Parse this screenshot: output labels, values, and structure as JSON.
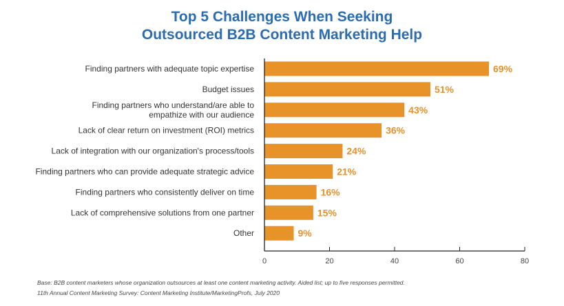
{
  "chart_data": {
    "type": "bar",
    "orientation": "horizontal",
    "title": [
      "Top 5 Challenges When Seeking",
      "Outsourced B2B Content Marketing Help"
    ],
    "categories": [
      [
        "Finding partners with adequate topic expertise"
      ],
      [
        "Budget issues"
      ],
      [
        "Finding partners who understand/are able to",
        "empathize with our audience"
      ],
      [
        "Lack of clear return on investment (ROI) metrics"
      ],
      [
        "Lack of integration with our organization's process/tools"
      ],
      [
        "Finding partners who can provide adequate strategic advice"
      ],
      [
        "Finding partners who consistently deliver on time"
      ],
      [
        "Lack of comprehensive solutions from one partner"
      ],
      [
        "Other"
      ]
    ],
    "values": [
      69,
      51,
      43,
      36,
      24,
      21,
      16,
      15,
      9
    ],
    "data_labels": [
      "69%",
      "51%",
      "43%",
      "36%",
      "24%",
      "21%",
      "16%",
      "15%",
      "9%"
    ],
    "xlim": [
      0,
      80
    ],
    "xticks": [
      0,
      20,
      40,
      60,
      80
    ],
    "grid": false,
    "bar_color": "#e8922a",
    "title_color": "#2b6cb0"
  },
  "footnotes": [
    "Base: B2B content marketers whose organization outsources at least one content marketing activity. Aided list; up to five responses permitted.",
    "11th Annual Content Marketing Survey: Content Marketing Institute/MarketingProfs, July 2020"
  ]
}
